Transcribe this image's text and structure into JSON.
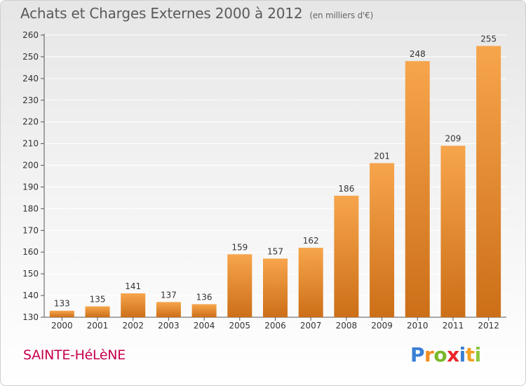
{
  "title": {
    "main": "Achats et Charges Externes 2000 à 2012",
    "unit": "(en milliers d'€)"
  },
  "location": "SAINTE-HéLèNE",
  "brand": {
    "letters": [
      "P",
      "r",
      "o",
      "x",
      "i",
      "t",
      "i"
    ],
    "colors": [
      "#3a7fd5",
      "#f28c1e",
      "#78b82a",
      "#e8262a",
      "#3a7fd5",
      "#f2a01e",
      "#8cc63f"
    ]
  },
  "colors": {
    "bar_top": "#f7a54c",
    "bar_bottom": "#cc6f18",
    "axis": "#555555",
    "grid": "#ffffff"
  },
  "chart_data": {
    "type": "bar",
    "categories": [
      "2000",
      "2001",
      "2002",
      "2003",
      "2004",
      "2005",
      "2006",
      "2007",
      "2008",
      "2009",
      "2010",
      "2011",
      "2012"
    ],
    "values": [
      133,
      135,
      141,
      137,
      136,
      159,
      157,
      162,
      186,
      201,
      248,
      209,
      255
    ],
    "ylim": [
      130,
      260
    ],
    "yticks": [
      130,
      140,
      150,
      160,
      170,
      180,
      190,
      200,
      210,
      220,
      230,
      240,
      250,
      260
    ],
    "data_labels": true,
    "grid": true,
    "legend": "none"
  }
}
